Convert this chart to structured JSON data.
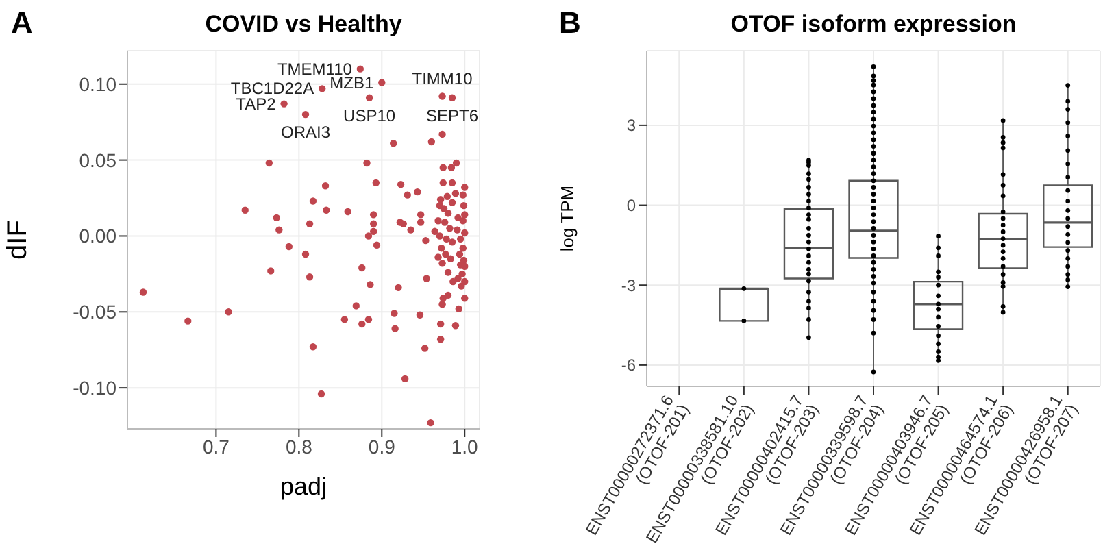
{
  "chart_data": [
    {
      "type": "scatter",
      "title": "COVID vs Healthy",
      "xlabel": "padj",
      "ylabel": "dIF",
      "xlim": [
        0.593,
        1.018
      ],
      "ylim": [
        -0.127,
        0.122
      ],
      "xticks": [
        0.7,
        0.8,
        0.9,
        {
          "value": 1,
          "label": "1.0"
        }
      ],
      "yticks": [
        {
          "value": -0.1,
          "label": "-0.10"
        },
        {
          "value": -0.05,
          "label": "-0.05"
        },
        {
          "value": 0,
          "label": "0.00"
        },
        {
          "value": 0.05,
          "label": "0.05"
        },
        {
          "value": 0.1,
          "label": "0.10"
        }
      ],
      "grid": true,
      "marker": "circle",
      "annotations": [
        "A",
        {
          "text": "TMEM110",
          "x": 0.874,
          "y": 0.11
        },
        {
          "text": "MZB1",
          "x": 0.9,
          "y": 0.101
        },
        {
          "text": "TBC1D22A",
          "x": 0.828,
          "y": 0.097
        },
        {
          "text": "TAP2",
          "x": 0.782,
          "y": 0.087
        },
        {
          "text": "ORAI3",
          "x": 0.808,
          "y": 0.08
        },
        {
          "text": "USP10",
          "x": 0.885,
          "y": 0.091
        },
        {
          "text": "TIMM10",
          "x": 0.973,
          "y": 0.092
        },
        {
          "text": "SEPT6",
          "x": 0.985,
          "y": 0.091
        }
      ],
      "series": [
        {
          "color": "#c0464e",
          "x": [
            0.874,
            0.9,
            0.828,
            0.782,
            0.808,
            0.885,
            0.973,
            0.985,
            0.973,
            0.96,
            0.914,
            0.764,
            0.882,
            0.99,
            0.974,
            0.984,
            0.893,
            0.974,
            0.832,
            0.923,
            0.985,
            0.931,
            0.943,
            0.817,
            0.735,
            0.833,
            0.859,
            0.89,
            0.947,
            0.773,
            0.813,
            0.89,
            0.922,
            0.926,
            0.947,
            0.776,
            0.935,
            0.89,
            0.884,
            0.964,
            0.788,
            0.894,
            0.953,
            0.808,
            0.766,
            0.876,
            0.813,
            0.954,
            0.886,
            0.92,
            0.612,
            0.974,
            1.0,
            0.666,
            0.715,
            0.855,
            0.869,
            0.876,
            0.884,
            0.915,
            0.916,
            0.946,
            0.973,
            0.98,
            0.993,
            0.971,
            0.971,
            0.989,
            0.952,
            0.817,
            0.928,
            0.827,
            0.959,
            0.97,
            0.975,
            0.98,
            0.985,
            1.0,
            0.998,
            0.992,
            0.982,
            0.97,
            0.978,
            0.985,
            0.995,
            1.0,
            0.998,
            0.968,
            0.972,
            0.977,
            0.983,
            0.994,
            0.999,
            1.0,
            0.997,
            0.992,
            0.986,
            0.98,
            0.973,
            0.968,
            0.996,
            1.0,
            0.999,
            0.991,
            0.976,
            0.998,
            1.0,
            0.989,
            0.979,
            0.971,
            0.995
          ],
          "values": [
            0.11,
            0.101,
            0.097,
            0.087,
            0.08,
            0.091,
            0.092,
            0.091,
            0.067,
            0.062,
            0.061,
            0.048,
            0.048,
            0.048,
            0.045,
            0.045,
            0.035,
            0.035,
            0.033,
            0.034,
            0.035,
            0.027,
            0.029,
            0.023,
            0.017,
            0.017,
            0.016,
            0.014,
            0.014,
            0.012,
            0.008,
            0.008,
            0.009,
            0.008,
            0.009,
            0.004,
            0.004,
            0.003,
            0.0,
            0.003,
            -0.007,
            -0.006,
            -0.003,
            -0.012,
            -0.023,
            -0.021,
            -0.027,
            -0.028,
            -0.032,
            -0.034,
            -0.037,
            -0.041,
            -0.041,
            -0.056,
            -0.05,
            -0.055,
            -0.046,
            -0.058,
            -0.055,
            -0.051,
            -0.061,
            -0.052,
            -0.045,
            -0.039,
            -0.048,
            -0.058,
            -0.068,
            -0.059,
            -0.074,
            -0.073,
            -0.094,
            -0.104,
            -0.123,
            0.02,
            0.018,
            0.015,
            0.022,
            0.032,
            0.027,
            0.012,
            0.005,
            0.0,
            -0.002,
            -0.004,
            -0.002,
            0.002,
            0.01,
            0.01,
            -0.008,
            -0.012,
            -0.015,
            -0.012,
            -0.016,
            -0.02,
            -0.025,
            -0.028,
            -0.03,
            -0.024,
            -0.018,
            -0.014,
            -0.033,
            -0.03,
            0.02,
            0.004,
            0.009,
            -0.008,
            0.014,
            0.028,
            0.026,
            0.024,
            -0.019
          ]
        }
      ]
    },
    {
      "type": "box",
      "title": "OTOF isoform expression",
      "ylabel": "log TPM",
      "ylim": [
        -6.8,
        5.8
      ],
      "yticks": [
        -6,
        -3,
        0,
        3
      ],
      "grid": true,
      "categories": [
        "ENST00000272371.6\n(OTOF-201)",
        "ENST00000338581.10\n(OTOF-202)",
        "ENST00000402415.7\n(OTOF-203)",
        "ENST00000339598.7\n(OTOF-204)",
        "ENST00000403946.7\n(OTOF-205)",
        "ENST00000464574.1\n(OTOF-206)",
        "ENST00000426958.1\n(OTOF-207)"
      ],
      "annotations": [
        "B"
      ],
      "series": [
        {
          "type": "box",
          "color": "#595959",
          "boxes": [
            null,
            {
              "low": -4.34,
              "q1": -4.34,
              "median": -3.13,
              "q3": -3.13,
              "high": -3.13
            },
            {
              "low": -4.97,
              "q1": -2.75,
              "median": -1.61,
              "q3": -0.14,
              "high": 1.69
            },
            {
              "low": -6.26,
              "q1": -1.98,
              "median": -0.96,
              "q3": 0.92,
              "high": 5.2
            },
            {
              "low": -5.83,
              "q1": -4.65,
              "median": -3.71,
              "q3": -2.87,
              "high": -1.16
            },
            {
              "low": -4.02,
              "q1": -2.36,
              "median": -1.26,
              "q3": -0.32,
              "high": 3.18
            },
            {
              "low": -3.06,
              "q1": -1.57,
              "median": -0.65,
              "q3": 0.75,
              "high": 4.5
            }
          ]
        },
        {
          "type": "scatter",
          "color": "#000000",
          "marker": "circle",
          "x": [
            "ENST00000338581.10\n(OTOF-202)",
            "ENST00000338581.10\n(OTOF-202)",
            "ENST00000402415.7\n(OTOF-203)",
            "ENST00000402415.7\n(OTOF-203)",
            "ENST00000402415.7\n(OTOF-203)",
            "ENST00000402415.7\n(OTOF-203)",
            "ENST00000402415.7\n(OTOF-203)",
            "ENST00000402415.7\n(OTOF-203)",
            "ENST00000402415.7\n(OTOF-203)",
            "ENST00000402415.7\n(OTOF-203)",
            "ENST00000402415.7\n(OTOF-203)",
            "ENST00000402415.7\n(OTOF-203)",
            "ENST00000402415.7\n(OTOF-203)",
            "ENST00000402415.7\n(OTOF-203)",
            "ENST00000402415.7\n(OTOF-203)",
            "ENST00000402415.7\n(OTOF-203)",
            "ENST00000402415.7\n(OTOF-203)",
            "ENST00000402415.7\n(OTOF-203)",
            "ENST00000402415.7\n(OTOF-203)",
            "ENST00000402415.7\n(OTOF-203)",
            "ENST00000402415.7\n(OTOF-203)",
            "ENST00000402415.7\n(OTOF-203)",
            "ENST00000402415.7\n(OTOF-203)",
            "ENST00000402415.7\n(OTOF-203)",
            "ENST00000402415.7\n(OTOF-203)",
            "ENST00000402415.7\n(OTOF-203)",
            "ENST00000402415.7\n(OTOF-203)",
            "ENST00000339598.7\n(OTOF-204)",
            "ENST00000339598.7\n(OTOF-204)",
            "ENST00000339598.7\n(OTOF-204)",
            "ENST00000339598.7\n(OTOF-204)",
            "ENST00000339598.7\n(OTOF-204)",
            "ENST00000339598.7\n(OTOF-204)",
            "ENST00000339598.7\n(OTOF-204)",
            "ENST00000339598.7\n(OTOF-204)",
            "ENST00000339598.7\n(OTOF-204)",
            "ENST00000339598.7\n(OTOF-204)",
            "ENST00000339598.7\n(OTOF-204)",
            "ENST00000339598.7\n(OTOF-204)",
            "ENST00000339598.7\n(OTOF-204)",
            "ENST00000339598.7\n(OTOF-204)",
            "ENST00000339598.7\n(OTOF-204)",
            "ENST00000339598.7\n(OTOF-204)",
            "ENST00000339598.7\n(OTOF-204)",
            "ENST00000339598.7\n(OTOF-204)",
            "ENST00000339598.7\n(OTOF-204)",
            "ENST00000339598.7\n(OTOF-204)",
            "ENST00000339598.7\n(OTOF-204)",
            "ENST00000339598.7\n(OTOF-204)",
            "ENST00000339598.7\n(OTOF-204)",
            "ENST00000339598.7\n(OTOF-204)",
            "ENST00000339598.7\n(OTOF-204)",
            "ENST00000339598.7\n(OTOF-204)",
            "ENST00000339598.7\n(OTOF-204)",
            "ENST00000339598.7\n(OTOF-204)",
            "ENST00000339598.7\n(OTOF-204)",
            "ENST00000339598.7\n(OTOF-204)",
            "ENST00000339598.7\n(OTOF-204)",
            "ENST00000339598.7\n(OTOF-204)",
            "ENST00000339598.7\n(OTOF-204)",
            "ENST00000339598.7\n(OTOF-204)",
            "ENST00000339598.7\n(OTOF-204)",
            "ENST00000339598.7\n(OTOF-204)",
            "ENST00000339598.7\n(OTOF-204)",
            "ENST00000339598.7\n(OTOF-204)",
            "ENST00000339598.7\n(OTOF-204)",
            "ENST00000403946.7\n(OTOF-205)",
            "ENST00000403946.7\n(OTOF-205)",
            "ENST00000403946.7\n(OTOF-205)",
            "ENST00000403946.7\n(OTOF-205)",
            "ENST00000403946.7\n(OTOF-205)",
            "ENST00000403946.7\n(OTOF-205)",
            "ENST00000403946.7\n(OTOF-205)",
            "ENST00000403946.7\n(OTOF-205)",
            "ENST00000403946.7\n(OTOF-205)",
            "ENST00000403946.7\n(OTOF-205)",
            "ENST00000403946.7\n(OTOF-205)",
            "ENST00000403946.7\n(OTOF-205)",
            "ENST00000403946.7\n(OTOF-205)",
            "ENST00000403946.7\n(OTOF-205)",
            "ENST00000403946.7\n(OTOF-205)",
            "ENST00000403946.7\n(OTOF-205)",
            "ENST00000464574.1\n(OTOF-206)",
            "ENST00000464574.1\n(OTOF-206)",
            "ENST00000464574.1\n(OTOF-206)",
            "ENST00000464574.1\n(OTOF-206)",
            "ENST00000464574.1\n(OTOF-206)",
            "ENST00000464574.1\n(OTOF-206)",
            "ENST00000464574.1\n(OTOF-206)",
            "ENST00000464574.1\n(OTOF-206)",
            "ENST00000464574.1\n(OTOF-206)",
            "ENST00000464574.1\n(OTOF-206)",
            "ENST00000464574.1\n(OTOF-206)",
            "ENST00000464574.1\n(OTOF-206)",
            "ENST00000464574.1\n(OTOF-206)",
            "ENST00000464574.1\n(OTOF-206)",
            "ENST00000464574.1\n(OTOF-206)",
            "ENST00000464574.1\n(OTOF-206)",
            "ENST00000464574.1\n(OTOF-206)",
            "ENST00000464574.1\n(OTOF-206)",
            "ENST00000464574.1\n(OTOF-206)",
            "ENST00000464574.1\n(OTOF-206)",
            "ENST00000464574.1\n(OTOF-206)",
            "ENST00000426958.1\n(OTOF-207)",
            "ENST00000426958.1\n(OTOF-207)",
            "ENST00000426958.1\n(OTOF-207)",
            "ENST00000426958.1\n(OTOF-207)",
            "ENST00000426958.1\n(OTOF-207)",
            "ENST00000426958.1\n(OTOF-207)",
            "ENST00000426958.1\n(OTOF-207)",
            "ENST00000426958.1\n(OTOF-207)",
            "ENST00000426958.1\n(OTOF-207)",
            "ENST00000426958.1\n(OTOF-207)",
            "ENST00000426958.1\n(OTOF-207)",
            "ENST00000426958.1\n(OTOF-207)",
            "ENST00000426958.1\n(OTOF-207)",
            "ENST00000426958.1\n(OTOF-207)",
            "ENST00000426958.1\n(OTOF-207)",
            "ENST00000426958.1\n(OTOF-207)",
            "ENST00000426958.1\n(OTOF-207)",
            "ENST00000426958.1\n(OTOF-207)",
            "ENST00000426958.1\n(OTOF-207)",
            "ENST00000426958.1\n(OTOF-207)",
            "ENST00000426958.1\n(OTOF-207)"
          ],
          "values": [
            -3.13,
            -4.34,
            1.69,
            1.61,
            1.49,
            1.18,
            0.97,
            0.67,
            0.41,
            0.15,
            -0.1,
            -0.36,
            -0.53,
            -0.87,
            -1.13,
            -1.38,
            -1.64,
            -1.9,
            -2.15,
            -2.41,
            -2.58,
            -2.84,
            -3.26,
            -3.61,
            -3.86,
            -4.29,
            -4.97,
            5.2,
            4.85,
            4.68,
            4.51,
            4.26,
            4.0,
            3.74,
            3.49,
            3.23,
            2.97,
            2.72,
            2.46,
            2.21,
            1.95,
            1.69,
            1.44,
            1.18,
            0.92,
            0.67,
            0.41,
            0.15,
            -0.1,
            -0.36,
            -0.62,
            -0.87,
            -1.13,
            -1.38,
            -1.64,
            -1.9,
            -2.15,
            -2.41,
            -2.67,
            -2.92,
            -3.26,
            -3.61,
            -3.95,
            -4.29,
            -4.8,
            -6.26,
            -1.16,
            -1.6,
            -1.9,
            -2.5,
            -2.7,
            -3.0,
            -3.4,
            -3.71,
            -3.9,
            -4.2,
            -4.55,
            -4.9,
            -5.2,
            -5.5,
            -5.7,
            -5.83,
            3.18,
            2.55,
            2.35,
            2.15,
            1.15,
            0.75,
            0.35,
            -0.25,
            -0.5,
            -0.75,
            -1.0,
            -1.26,
            -1.5,
            -1.75,
            -2.0,
            -2.3,
            -2.6,
            -2.9,
            -3.05,
            -3.8,
            -4.02,
            4.5,
            3.9,
            3.6,
            3.1,
            2.6,
            2.05,
            1.55,
            1.05,
            0.55,
            0.15,
            -0.2,
            -0.5,
            -0.8,
            -1.1,
            -1.4,
            -1.7,
            -2.0,
            -2.3,
            -2.6,
            -2.8,
            -3.06
          ]
        }
      ]
    }
  ]
}
